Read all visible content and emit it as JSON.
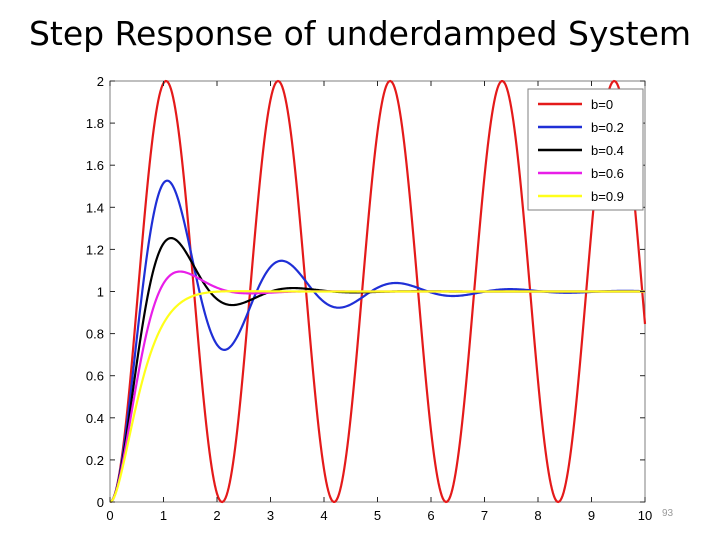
{
  "slide": {
    "title": "Step Response of underdamped System",
    "slide_number": "93"
  },
  "chart_data": {
    "type": "line",
    "title": "",
    "xlabel": "",
    "ylabel": "",
    "xlim": [
      0,
      10
    ],
    "ylim": [
      0,
      2
    ],
    "x_ticks": [
      0,
      1,
      2,
      3,
      4,
      5,
      6,
      7,
      8,
      9,
      10
    ],
    "y_ticks": [
      0,
      0.2,
      0.4,
      0.6,
      0.8,
      1,
      1.2,
      1.4,
      1.6,
      1.8,
      2
    ],
    "x_tick_labels": [
      "0",
      "1",
      "2",
      "3",
      "4",
      "5",
      "6",
      "7",
      "8",
      "9",
      "10"
    ],
    "y_tick_labels": [
      "0",
      "0.2",
      "0.4",
      "0.6",
      "0.8",
      "1",
      "1.2",
      "1.4",
      "1.6",
      "1.8",
      "2"
    ],
    "grid": false,
    "legend_position": "top-right",
    "natural_frequency": 3,
    "sample_step": 0.02,
    "series": [
      {
        "name": "b=0",
        "damping": 0,
        "color": "#e41a1a"
      },
      {
        "name": "b=0.2",
        "damping": 0.2,
        "color": "#1f2fd6"
      },
      {
        "name": "b=0.4",
        "damping": 0.4,
        "color": "#000000"
      },
      {
        "name": "b=0.6",
        "damping": 0.6,
        "color": "#e81ee8"
      },
      {
        "name": "b=0.9",
        "damping": 0.9,
        "color": "#ffff1a"
      }
    ]
  }
}
